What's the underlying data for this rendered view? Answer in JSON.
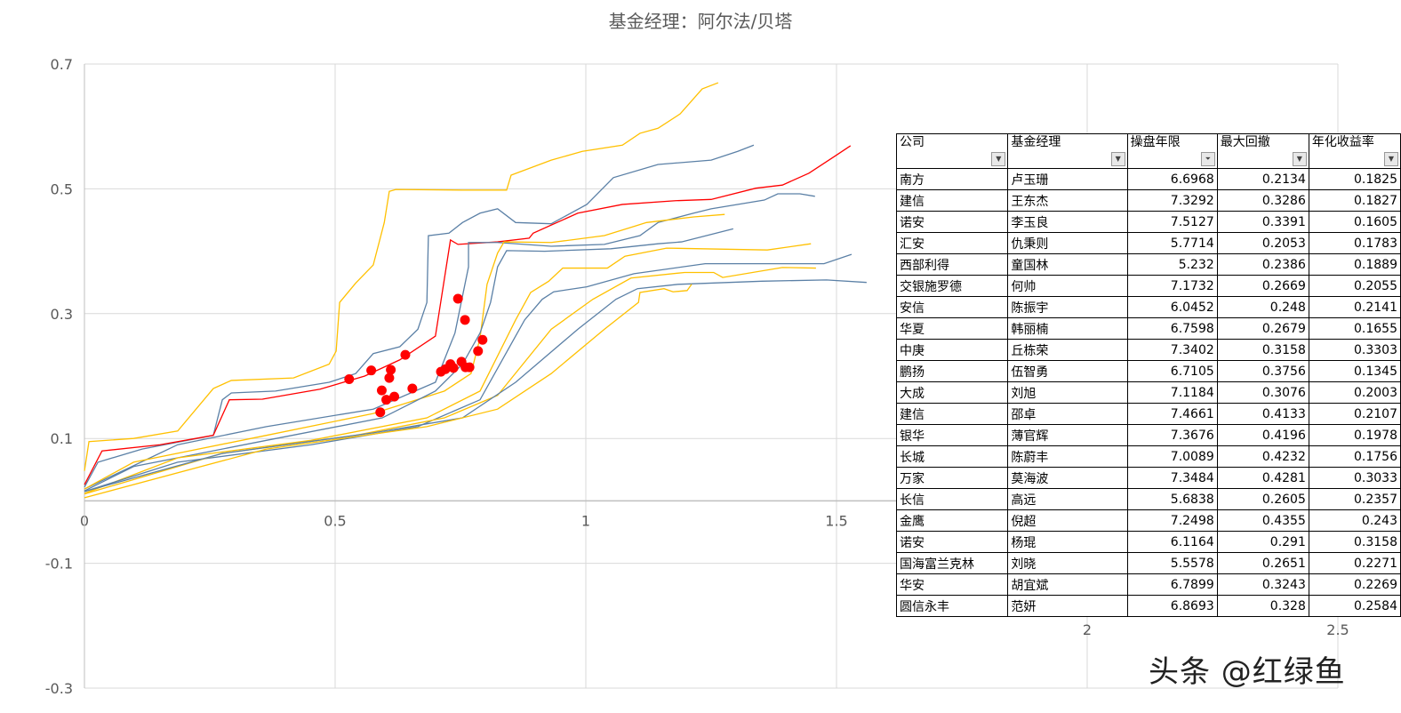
{
  "chart_data": {
    "type": "line",
    "title": "基金经理：阿尔法/贝塔",
    "xlim": [
      0,
      2.5
    ],
    "ylim": [
      -0.3,
      0.7
    ],
    "x_ticks": [
      "0",
      "0.5",
      "1",
      "1.5",
      "2",
      "2.5"
    ],
    "x_tick_values": [
      0,
      0.5,
      1,
      1.5,
      2,
      2.5
    ],
    "y_ticks": [
      "0.7",
      "0.5",
      "0.3",
      "0.1",
      "-0.1",
      "-0.3"
    ],
    "y_tick_values": [
      0.7,
      0.5,
      0.3,
      0.1,
      -0.1,
      -0.3
    ],
    "grid": true,
    "colors": {
      "yellow": "#FFC000",
      "blue": "#5B80A6",
      "red": "#FF0000",
      "grid": "#D9D9D9"
    },
    "series": [
      {
        "color": "yellow",
        "points": [
          [
            0,
            0.048
          ],
          [
            0.009,
            0.095
          ],
          [
            0.098,
            0.1
          ],
          [
            0.186,
            0.112
          ],
          [
            0.257,
            0.18
          ],
          [
            0.293,
            0.193
          ],
          [
            0.417,
            0.197
          ],
          [
            0.488,
            0.219
          ],
          [
            0.502,
            0.24
          ],
          [
            0.509,
            0.318
          ],
          [
            0.541,
            0.349
          ],
          [
            0.576,
            0.378
          ],
          [
            0.598,
            0.446
          ],
          [
            0.608,
            0.496
          ],
          [
            0.621,
            0.499
          ],
          [
            0.754,
            0.498
          ],
          [
            0.842,
            0.498
          ],
          [
            0.851,
            0.522
          ],
          [
            0.931,
            0.546
          ],
          [
            0.993,
            0.56
          ],
          [
            1.073,
            0.57
          ],
          [
            1.108,
            0.589
          ],
          [
            1.144,
            0.597
          ],
          [
            1.188,
            0.62
          ],
          [
            1.232,
            0.66
          ],
          [
            1.264,
            0.67
          ]
        ]
      },
      {
        "color": "blue",
        "points": [
          [
            0,
            0.022
          ],
          [
            0.027,
            0.062
          ],
          [
            0.115,
            0.083
          ],
          [
            0.257,
            0.105
          ],
          [
            0.275,
            0.162
          ],
          [
            0.293,
            0.173
          ],
          [
            0.381,
            0.176
          ],
          [
            0.488,
            0.19
          ],
          [
            0.541,
            0.204
          ],
          [
            0.576,
            0.236
          ],
          [
            0.629,
            0.247
          ],
          [
            0.665,
            0.275
          ],
          [
            0.683,
            0.318
          ],
          [
            0.686,
            0.425
          ],
          [
            0.727,
            0.429
          ],
          [
            0.754,
            0.446
          ],
          [
            0.789,
            0.461
          ],
          [
            0.824,
            0.468
          ],
          [
            0.86,
            0.446
          ],
          [
            0.931,
            0.444
          ],
          [
            1.002,
            0.475
          ],
          [
            1.055,
            0.518
          ],
          [
            1.144,
            0.539
          ],
          [
            1.25,
            0.546
          ],
          [
            1.303,
            0.56
          ],
          [
            1.335,
            0.57
          ]
        ]
      },
      {
        "color": "red",
        "points": [
          [
            0,
            0.026
          ],
          [
            0.035,
            0.08
          ],
          [
            0.151,
            0.09
          ],
          [
            0.257,
            0.105
          ],
          [
            0.289,
            0.162
          ],
          [
            0.355,
            0.163
          ],
          [
            0.47,
            0.179
          ],
          [
            0.559,
            0.2
          ],
          [
            0.629,
            0.226
          ],
          [
            0.7,
            0.264
          ],
          [
            0.73,
            0.418
          ],
          [
            0.745,
            0.411
          ],
          [
            0.824,
            0.415
          ],
          [
            0.887,
            0.421
          ],
          [
            0.895,
            0.429
          ],
          [
            0.984,
            0.461
          ],
          [
            1.073,
            0.475
          ],
          [
            1.179,
            0.481
          ],
          [
            1.25,
            0.483
          ],
          [
            1.339,
            0.501
          ],
          [
            1.392,
            0.506
          ],
          [
            1.445,
            0.525
          ],
          [
            1.498,
            0.553
          ],
          [
            1.528,
            0.569
          ]
        ]
      },
      {
        "color": "blue",
        "points": [
          [
            0,
            0.019
          ],
          [
            0.186,
            0.09
          ],
          [
            0.363,
            0.119
          ],
          [
            0.576,
            0.147
          ],
          [
            0.7,
            0.19
          ],
          [
            0.739,
            0.269
          ],
          [
            0.766,
            0.375
          ],
          [
            0.766,
            0.414
          ],
          [
            0.824,
            0.414
          ],
          [
            0.931,
            0.408
          ],
          [
            1.037,
            0.411
          ],
          [
            1.108,
            0.425
          ],
          [
            1.144,
            0.446
          ],
          [
            1.215,
            0.461
          ],
          [
            1.25,
            0.468
          ],
          [
            1.356,
            0.482
          ],
          [
            1.383,
            0.492
          ],
          [
            1.427,
            0.492
          ],
          [
            1.457,
            0.488
          ]
        ]
      },
      {
        "color": "yellow",
        "points": [
          [
            0,
            0.019
          ],
          [
            0.098,
            0.062
          ],
          [
            0.363,
            0.105
          ],
          [
            0.576,
            0.14
          ],
          [
            0.718,
            0.176
          ],
          [
            0.771,
            0.204
          ],
          [
            0.789,
            0.261
          ],
          [
            0.803,
            0.347
          ],
          [
            0.824,
            0.397
          ],
          [
            0.837,
            0.415
          ],
          [
            0.931,
            0.414
          ],
          [
            1.037,
            0.425
          ],
          [
            1.121,
            0.446
          ],
          [
            1.215,
            0.455
          ],
          [
            1.277,
            0.459
          ]
        ]
      },
      {
        "color": "blue",
        "points": [
          [
            0,
            0.016
          ],
          [
            0.098,
            0.055
          ],
          [
            0.363,
            0.097
          ],
          [
            0.594,
            0.133
          ],
          [
            0.7,
            0.176
          ],
          [
            0.754,
            0.219
          ],
          [
            0.789,
            0.269
          ],
          [
            0.81,
            0.318
          ],
          [
            0.824,
            0.375
          ],
          [
            0.842,
            0.401
          ],
          [
            0.918,
            0.4
          ],
          [
            1.05,
            0.404
          ],
          [
            1.144,
            0.412
          ],
          [
            1.191,
            0.415
          ],
          [
            1.294,
            0.436
          ]
        ]
      },
      {
        "color": "yellow",
        "points": [
          [
            0,
            0.012
          ],
          [
            0.186,
            0.069
          ],
          [
            0.452,
            0.097
          ],
          [
            0.683,
            0.133
          ],
          [
            0.789,
            0.176
          ],
          [
            0.86,
            0.29
          ],
          [
            0.89,
            0.334
          ],
          [
            0.926,
            0.352
          ],
          [
            0.954,
            0.373
          ],
          [
            1.043,
            0.373
          ],
          [
            1.078,
            0.392
          ],
          [
            1.161,
            0.405
          ],
          [
            1.362,
            0.402
          ],
          [
            1.449,
            0.412
          ]
        ]
      },
      {
        "color": "blue",
        "points": [
          [
            0,
            0.015
          ],
          [
            0.186,
            0.062
          ],
          [
            0.452,
            0.09
          ],
          [
            0.665,
            0.119
          ],
          [
            0.789,
            0.162
          ],
          [
            0.878,
            0.29
          ],
          [
            0.913,
            0.323
          ],
          [
            0.936,
            0.335
          ],
          [
            1.002,
            0.343
          ],
          [
            1.096,
            0.364
          ],
          [
            1.238,
            0.38
          ],
          [
            1.475,
            0.38
          ],
          [
            1.53,
            0.395
          ]
        ]
      },
      {
        "color": "yellow",
        "points": [
          [
            0,
            0.011
          ],
          [
            0.275,
            0.076
          ],
          [
            0.541,
            0.105
          ],
          [
            0.718,
            0.133
          ],
          [
            0.824,
            0.169
          ],
          [
            0.931,
            0.275
          ],
          [
            1.014,
            0.323
          ],
          [
            1.09,
            0.357
          ],
          [
            1.197,
            0.366
          ],
          [
            1.255,
            0.366
          ],
          [
            1.273,
            0.358
          ],
          [
            1.392,
            0.374
          ],
          [
            1.459,
            0.373
          ]
        ]
      },
      {
        "color": "blue",
        "points": [
          [
            0,
            0.015
          ],
          [
            0.275,
            0.076
          ],
          [
            0.576,
            0.109
          ],
          [
            0.754,
            0.133
          ],
          [
            0.86,
            0.19
          ],
          [
            0.984,
            0.275
          ],
          [
            1.06,
            0.323
          ],
          [
            1.103,
            0.34
          ],
          [
            1.184,
            0.347
          ],
          [
            1.351,
            0.352
          ],
          [
            1.48,
            0.354
          ],
          [
            1.56,
            0.35
          ]
        ]
      },
      {
        "color": "yellow",
        "points": [
          [
            0,
            0.005
          ],
          [
            0.363,
            0.083
          ],
          [
            0.683,
            0.119
          ],
          [
            0.824,
            0.147
          ],
          [
            0.931,
            0.204
          ],
          [
            1.037,
            0.275
          ],
          [
            1.105,
            0.318
          ],
          [
            1.108,
            0.334
          ],
          [
            1.156,
            0.34
          ],
          [
            1.174,
            0.335
          ],
          [
            1.202,
            0.337
          ],
          [
            1.211,
            0.347
          ]
        ]
      }
    ],
    "scatter": {
      "color": "red",
      "points": [
        [
          0.745,
          0.324
        ],
        [
          0.759,
          0.29
        ],
        [
          0.794,
          0.258
        ],
        [
          0.785,
          0.24
        ],
        [
          0.64,
          0.234
        ],
        [
          0.572,
          0.209
        ],
        [
          0.528,
          0.195
        ],
        [
          0.611,
          0.21
        ],
        [
          0.608,
          0.197
        ],
        [
          0.593,
          0.177
        ],
        [
          0.654,
          0.18
        ],
        [
          0.602,
          0.162
        ],
        [
          0.618,
          0.167
        ],
        [
          0.59,
          0.142
        ],
        [
          0.711,
          0.207
        ],
        [
          0.72,
          0.211
        ],
        [
          0.73,
          0.219
        ],
        [
          0.736,
          0.213
        ],
        [
          0.752,
          0.223
        ],
        [
          0.76,
          0.214
        ],
        [
          0.768,
          0.214
        ]
      ]
    }
  },
  "table": {
    "headers": [
      "公司",
      "基金经理",
      "操盘年限",
      "最大回撤",
      "年化收益率"
    ],
    "filter_icons": [
      "dropdown-icon",
      "dropdown-icon",
      "filter-active-icon",
      "dropdown-icon",
      "dropdown-icon"
    ],
    "rows": [
      [
        "南方",
        "卢玉珊",
        "6.6968",
        "0.2134",
        "0.1825"
      ],
      [
        "建信",
        "王东杰",
        "7.3292",
        "0.3286",
        "0.1827"
      ],
      [
        "诺安",
        "李玉良",
        "7.5127",
        "0.3391",
        "0.1605"
      ],
      [
        "汇安",
        "仇秉则",
        "5.7714",
        "0.2053",
        "0.1783"
      ],
      [
        "西部利得",
        "童国林",
        "5.232",
        "0.2386",
        "0.1889"
      ],
      [
        "交银施罗德",
        "何帅",
        "7.1732",
        "0.2669",
        "0.2055"
      ],
      [
        "安信",
        "陈振宇",
        "6.0452",
        "0.248",
        "0.2141"
      ],
      [
        "华夏",
        "韩丽楠",
        "6.7598",
        "0.2679",
        "0.1655"
      ],
      [
        "中庚",
        "丘栋荣",
        "7.3402",
        "0.3158",
        "0.3303"
      ],
      [
        "鹏扬",
        "伍智勇",
        "6.7105",
        "0.3756",
        "0.1345"
      ],
      [
        "大成",
        "刘旭",
        "7.1184",
        "0.3076",
        "0.2003"
      ],
      [
        "建信",
        "邵卓",
        "7.4661",
        "0.4133",
        "0.2107"
      ],
      [
        "银华",
        "薄官辉",
        "7.3676",
        "0.4196",
        "0.1978"
      ],
      [
        "长城",
        "陈蔚丰",
        "7.0089",
        "0.4232",
        "0.1756"
      ],
      [
        "万家",
        "莫海波",
        "7.3484",
        "0.4281",
        "0.3033"
      ],
      [
        "长信",
        "高远",
        "5.6838",
        "0.2605",
        "0.2357"
      ],
      [
        "金鹰",
        "倪超",
        "7.2498",
        "0.4355",
        "0.243"
      ],
      [
        "诺安",
        "杨琨",
        "6.1164",
        "0.291",
        "0.3158"
      ],
      [
        "国海富兰克林",
        "刘晓",
        "5.5578",
        "0.2651",
        "0.2271"
      ],
      [
        "华安",
        "胡宜斌",
        "6.7899",
        "0.3243",
        "0.2269"
      ],
      [
        "圆信永丰",
        "范妍",
        "6.8693",
        "0.328",
        "0.2584"
      ]
    ]
  },
  "watermark": "头条 @红绿鱼"
}
